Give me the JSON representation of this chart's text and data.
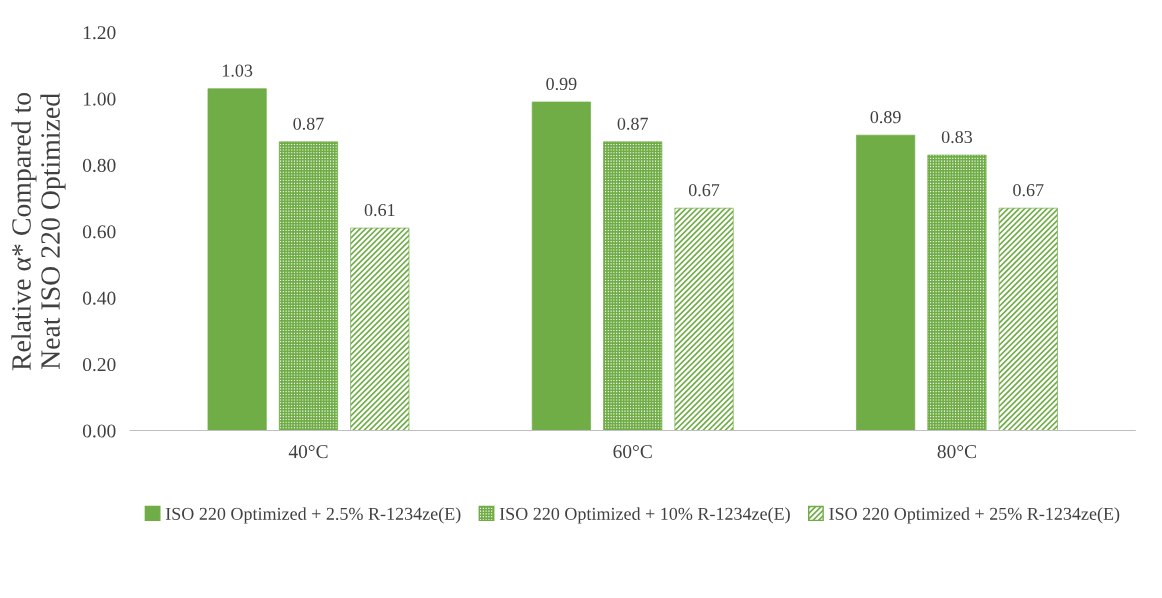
{
  "chart_data": {
    "type": "bar",
    "ylabel": "Relative α* Compared to\nNeat ISO 220 Optimized",
    "categories": [
      "40°C",
      "60°C",
      "80°C"
    ],
    "series": [
      {
        "name": "ISO 220 Optimized + 2.5% R-1234ze(E)",
        "color": "#70ad47",
        "values": [
          1.03,
          0.99,
          0.89
        ]
      },
      {
        "name": "ISO 220 Optimized + 10% R-1234ze(E)",
        "color": "#70ad47",
        "values": [
          0.87,
          0.87,
          0.83
        ]
      },
      {
        "name": "ISO 220 Optimized + 25% R-1234ze(E)",
        "color": "#70ad47",
        "values": [
          0.61,
          0.67,
          0.67
        ]
      }
    ],
    "ylim": [
      0,
      1.2
    ],
    "yticks": [
      {
        "value": 0,
        "label": "0.00"
      },
      {
        "value": 0.2,
        "label": "0.20"
      },
      {
        "value": 0.4,
        "label": "0.40"
      },
      {
        "value": 0.6,
        "label": "0.60"
      },
      {
        "value": 0.8,
        "label": "0.80"
      },
      {
        "value": 1.0,
        "label": "1.00"
      },
      {
        "value": 1.2,
        "label": "1.20"
      }
    ],
    "data_labels": true,
    "grid": false,
    "legend": "bottom"
  }
}
